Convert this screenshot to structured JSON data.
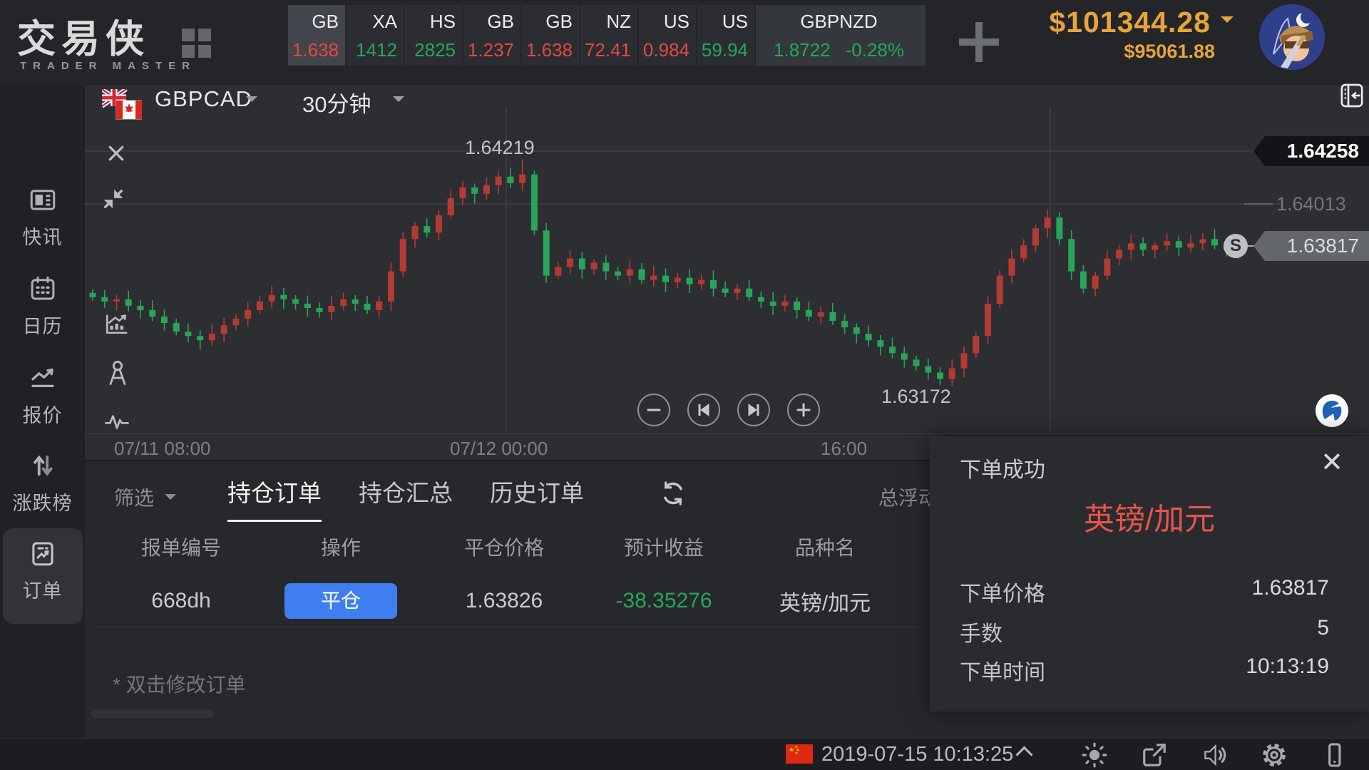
{
  "brand": {
    "logo": "交易侠",
    "tagline": "TRADER MASTER"
  },
  "account": {
    "balance": "$101344.28",
    "equity": "$95061.88"
  },
  "watchlist": [
    {
      "symbol": "GB",
      "price": "1.638",
      "dir": "up",
      "style": "first"
    },
    {
      "symbol": "XA",
      "price": "1412",
      "dir": "dn",
      "style": ""
    },
    {
      "symbol": "HS",
      "price": "2825",
      "dir": "dn",
      "style": ""
    },
    {
      "symbol": "GB",
      "price": "1.237",
      "dir": "up",
      "style": ""
    },
    {
      "symbol": "GB",
      "price": "1.638",
      "dir": "up",
      "style": ""
    },
    {
      "symbol": "NZ",
      "price": "72.41",
      "dir": "up",
      "style": ""
    },
    {
      "symbol": "US",
      "price": "0.984",
      "dir": "up",
      "style": ""
    },
    {
      "symbol": "US",
      "price": "59.94",
      "dir": "dn",
      "style": ""
    },
    {
      "symbol": "GBPNZD",
      "price": "1.8722",
      "change": "-0.28%",
      "dir": "dn",
      "style": "wide"
    }
  ],
  "sidebar": [
    {
      "label": "快讯",
      "icon": "news-icon",
      "active": false
    },
    {
      "label": "日历",
      "icon": "calendar-icon",
      "active": false
    },
    {
      "label": "报价",
      "icon": "quotes-icon",
      "active": false
    },
    {
      "label": "涨跌榜",
      "icon": "updown-icon",
      "active": false
    },
    {
      "label": "订单",
      "icon": "orders-icon",
      "active": true
    }
  ],
  "chart": {
    "symbol": "GBPCAD",
    "timeframe": "30分钟",
    "peak_label": "1.64219",
    "trough_label": "1.63172",
    "price_high": "1.64258",
    "price_mid": "1.64013",
    "price_current": "1.63817",
    "sell_marker": "S",
    "x_labels": [
      "07/11 08:00",
      "07/12 00:00",
      "16:00"
    ],
    "candles": {
      "first_open": 1.636,
      "peak_high": 1.64219,
      "trough_low": 1.63172,
      "closes": [
        1.6358,
        1.6356,
        1.6357,
        1.6354,
        1.6352,
        1.6349,
        1.6346,
        1.6342,
        1.634,
        1.6338,
        1.6341,
        1.6345,
        1.6348,
        1.6352,
        1.6356,
        1.6359,
        1.6357,
        1.6355,
        1.6353,
        1.6351,
        1.6354,
        1.6357,
        1.6355,
        1.6352,
        1.6356,
        1.637,
        1.6385,
        1.6391,
        1.6388,
        1.6396,
        1.6404,
        1.6409,
        1.6406,
        1.641,
        1.6414,
        1.6411,
        1.6415,
        1.6389,
        1.6368,
        1.6372,
        1.6376,
        1.6371,
        1.6374,
        1.637,
        1.6368,
        1.6371,
        1.6366,
        1.6368,
        1.6365,
        1.6367,
        1.6364,
        1.6366,
        1.6362,
        1.636,
        1.6362,
        1.6358,
        1.6356,
        1.6354,
        1.6356,
        1.6352,
        1.6349,
        1.6351,
        1.6347,
        1.6344,
        1.6341,
        1.6338,
        1.6335,
        1.6332,
        1.6329,
        1.6326,
        1.6323,
        1.632,
        1.6325,
        1.6332,
        1.634,
        1.6355,
        1.6368,
        1.6376,
        1.6382,
        1.639,
        1.6395,
        1.6385,
        1.637,
        1.6362,
        1.6368,
        1.6376,
        1.638,
        1.6383,
        1.638,
        1.6382,
        1.6384,
        1.6381,
        1.6383,
        1.6385,
        1.6382,
        1.638,
        1.63817
      ]
    },
    "colors": {
      "up": "#b43b33",
      "down": "#28a45b",
      "grid": "#3e4145"
    }
  },
  "orders_panel": {
    "filter_label": "筛选",
    "tabs": [
      {
        "label": "持仓订单",
        "active": true
      },
      {
        "label": "持仓汇总",
        "active": false
      },
      {
        "label": "历史订单",
        "active": false
      }
    ],
    "float_label": "总浮动",
    "headers": [
      "报单编号",
      "操作",
      "平仓价格",
      "预计收益",
      "品种名"
    ],
    "rows": [
      {
        "order_id": "668dh",
        "action": "平仓",
        "close_price": "1.63826",
        "profit": "-38.35276",
        "symbol": "英镑/加元"
      }
    ],
    "note": "* 双击修改订单"
  },
  "popup": {
    "title": "下单成功",
    "close_icon": "✕",
    "symbol": "英镑/加元",
    "rows": [
      {
        "label": "下单价格",
        "value": "1.63817"
      },
      {
        "label": "手数",
        "value": "5"
      },
      {
        "label": "下单时间",
        "value": "10:13:19"
      }
    ]
  },
  "statusbar": {
    "datetime": "2019-07-15 10:13:25"
  },
  "colors": {
    "accent_gold": "#e7a43b",
    "buy_blue": "#3e7ef0",
    "loss_green": "#27a65a",
    "tick_red": "#df4b3f",
    "popup_symbol_red": "#e8544b"
  }
}
